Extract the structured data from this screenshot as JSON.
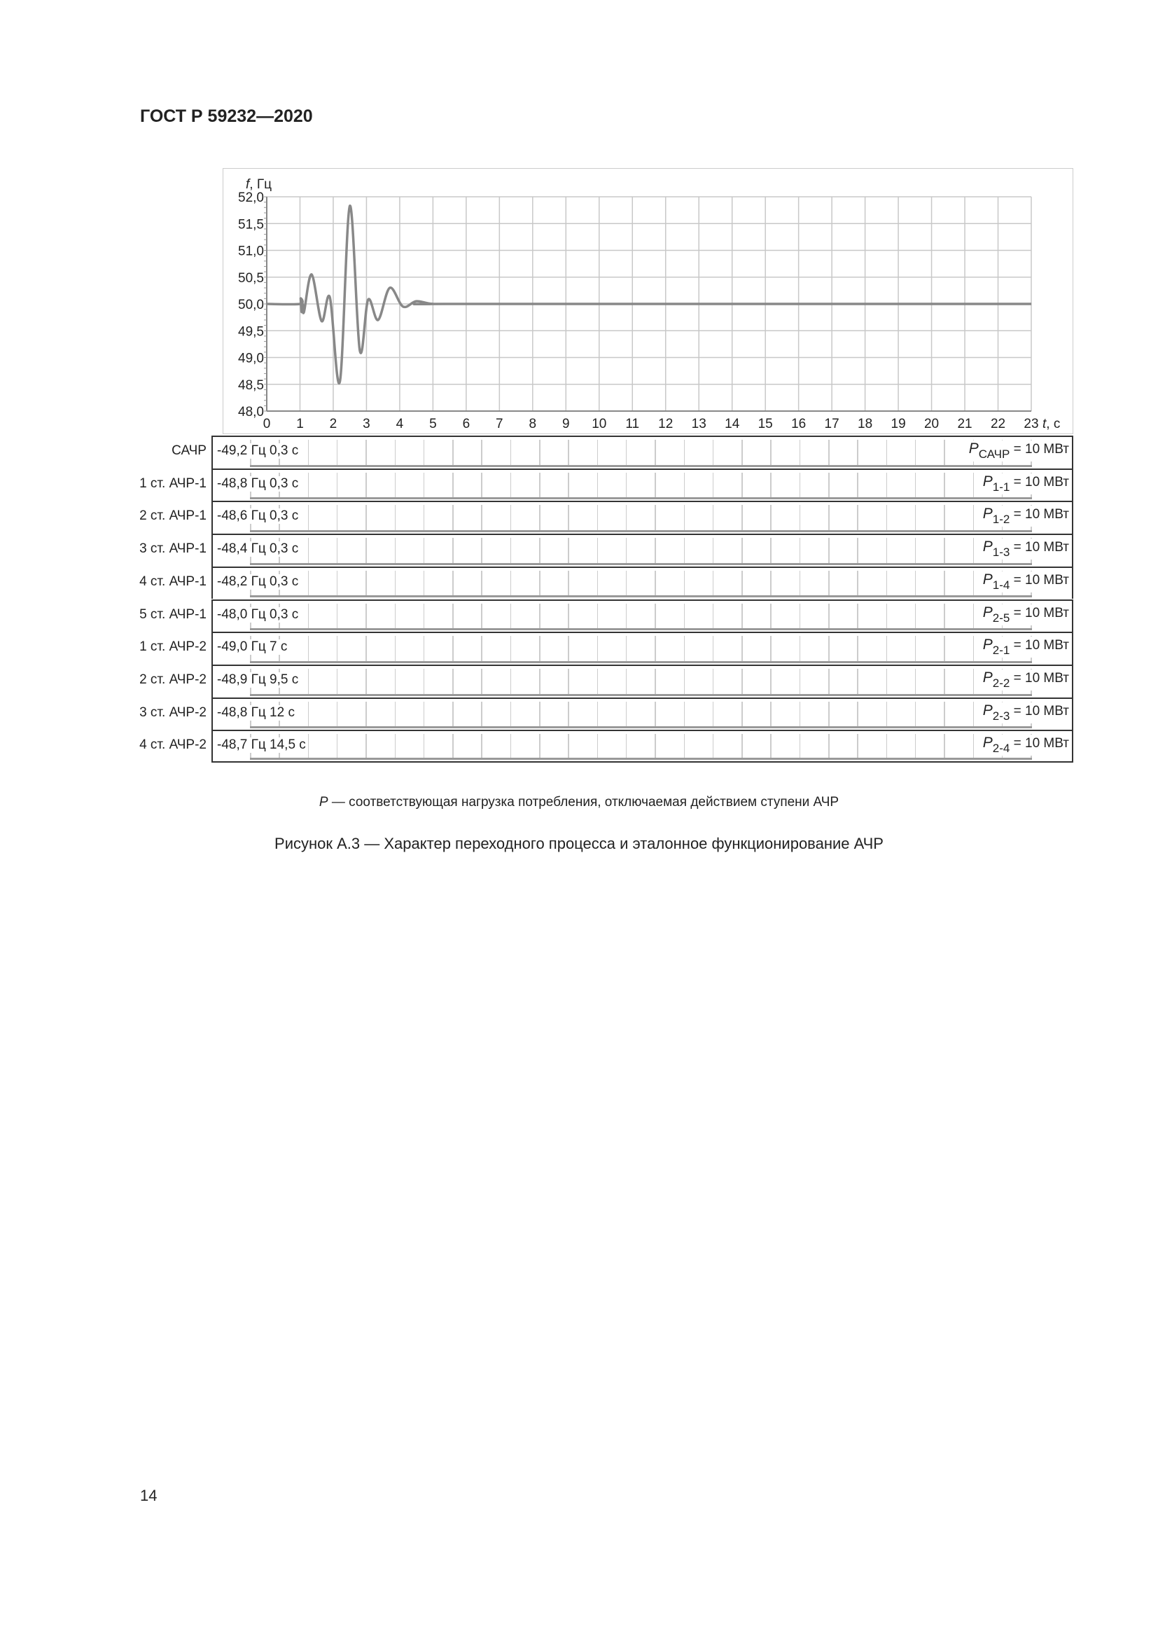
{
  "header": {
    "title": "ГОСТ Р 59232—2020"
  },
  "chart_data": {
    "type": "line",
    "ylabel_var": "f",
    "ylabel_unit": ", Гц",
    "xlabel_var": "t",
    "xlabel_unit": ", с",
    "xlim": [
      0,
      23
    ],
    "ylim": [
      48.0,
      52.0
    ],
    "grid": true,
    "x_ticks": [
      "0",
      "1",
      "2",
      "3",
      "4",
      "5",
      "6",
      "7",
      "8",
      "9",
      "10",
      "11",
      "12",
      "13",
      "14",
      "15",
      "16",
      "17",
      "18",
      "19",
      "20",
      "21",
      "22",
      "23"
    ],
    "y_ticks": [
      "48,0",
      "48,5",
      "49,0",
      "49,5",
      "50,0",
      "50,5",
      "51,0",
      "51,5",
      "52,0"
    ],
    "series": [
      {
        "color": "#888888",
        "x": [
          0,
          1.0,
          1.02,
          1.05,
          1.08,
          1.12,
          1.35,
          1.65,
          1.9,
          2.2,
          2.5,
          2.8,
          3.05,
          3.35,
          3.7,
          4.1,
          4.5,
          5.0,
          6.0,
          23
        ],
        "y": [
          50.0,
          50.0,
          50.1,
          49.85,
          50.0,
          49.85,
          50.55,
          49.68,
          50.12,
          48.55,
          51.83,
          49.13,
          50.08,
          49.7,
          50.3,
          49.95,
          50.05,
          50.0,
          50.0,
          50.0
        ]
      }
    ]
  },
  "rows": [
    {
      "label": "САЧР",
      "setting": "-49,2 Гц 0,3 с",
      "p": "P",
      "sub": "САЧР",
      "value": " = 10 МВт"
    },
    {
      "label": "1 ст. АЧР-1",
      "setting": "-48,8 Гц 0,3 с",
      "p": "P",
      "sub": "1-1",
      "value": " = 10 МВт"
    },
    {
      "label": "2 ст. АЧР-1",
      "setting": "-48,6 Гц 0,3 с",
      "p": "P",
      "sub": "1-2",
      "value": " = 10 МВт"
    },
    {
      "label": "3 ст. АЧР-1",
      "setting": "-48,4 Гц 0,3 с",
      "p": "P",
      "sub": "1-3",
      "value": " = 10 МВт"
    },
    {
      "label": "4 ст. АЧР-1",
      "setting": "-48,2 Гц 0,3 с",
      "p": "P",
      "sub": "1-4",
      "value": " = 10 МВт"
    },
    {
      "label": "5 ст. АЧР-1",
      "setting": "-48,0 Гц 0,3 с",
      "p": "P",
      "sub": "2-5",
      "value": " = 10 МВт"
    },
    {
      "label": "1 ст. АЧР-2",
      "setting": "-49,0 Гц 7 с",
      "p": "P",
      "sub": "2-1",
      "value": " = 10 МВт"
    },
    {
      "label": "2 ст. АЧР-2",
      "setting": "-48,9 Гц 9,5 с",
      "p": "P",
      "sub": "2-2",
      "value": " = 10 МВт"
    },
    {
      "label": "3 ст. АЧР-2",
      "setting": "-48,8 Гц 12 с",
      "p": "P",
      "sub": "2-3",
      "value": " = 10 МВт"
    },
    {
      "label": "4 ст. АЧР-2",
      "setting": "-48,7 Гц 14,5 с",
      "p": "P",
      "sub": "2-4",
      "value": " = 10 МВт"
    }
  ],
  "footnote": {
    "p": "P",
    "text": " — соответствующая нагрузка потребления, отключаемая действием ступени АЧР"
  },
  "caption": "Рисунок А.3 — Характер переходного процесса и эталонное функционирование АЧР",
  "page_number": "14"
}
